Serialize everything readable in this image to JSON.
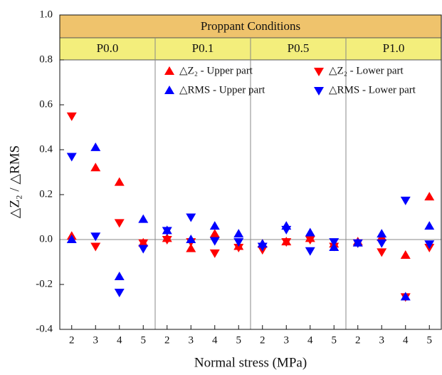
{
  "chart_data": {
    "type": "scatter",
    "header": "Proppant Conditions",
    "groups": [
      "P0.0",
      "P0.1",
      "P0.5",
      "P1.0"
    ],
    "categories": [
      2,
      3,
      4,
      5,
      2,
      3,
      4,
      5,
      2,
      3,
      4,
      5,
      2,
      3,
      4,
      5
    ],
    "xlabel": "Normal stress (MPa)",
    "ylabel": "△Z₂ / △RMS",
    "ylim": [
      -0.4,
      1.0
    ],
    "yticks": [
      -0.4,
      -0.2,
      {
        "value": 0,
        "label": "0.0"
      },
      0.2,
      0.4,
      0.6,
      0.8,
      {
        "value": 1,
        "label": "1.0"
      }
    ],
    "legend": "upper right",
    "series": [
      {
        "name": "△Z₂ - Upper part",
        "color": "#ff0000",
        "marker": "triangle-up",
        "values": [
          0.015,
          0.32,
          0.255,
          -0.015,
          0.005,
          -0.04,
          0.025,
          -0.03,
          -0.02,
          -0.01,
          0.005,
          -0.02,
          -0.01,
          0.01,
          -0.07,
          0.19
        ]
      },
      {
        "name": "△Z₂ - Lower part",
        "color": "#ff0000",
        "marker": "triangle-down",
        "values": [
          0.55,
          -0.03,
          0.075,
          -0.015,
          0.0,
          -0.01,
          -0.06,
          -0.035,
          -0.045,
          -0.01,
          0.0,
          -0.03,
          -0.015,
          -0.055,
          -0.255,
          -0.035
        ]
      },
      {
        "name": "△RMS - Upper part",
        "color": "#0000ff",
        "marker": "triangle-up",
        "values": [
          0.0,
          0.41,
          -0.165,
          0.09,
          0.04,
          0.0,
          0.06,
          0.025,
          -0.02,
          0.06,
          0.03,
          -0.035,
          -0.015,
          0.025,
          -0.255,
          0.06
        ]
      },
      {
        "name": "△RMS - Lower part",
        "color": "#0000ff",
        "marker": "triangle-down",
        "values": [
          0.37,
          0.015,
          -0.235,
          -0.04,
          0.04,
          0.1,
          -0.005,
          -0.01,
          -0.03,
          0.045,
          -0.05,
          -0.01,
          -0.015,
          -0.015,
          0.175,
          -0.02
        ]
      }
    ]
  }
}
